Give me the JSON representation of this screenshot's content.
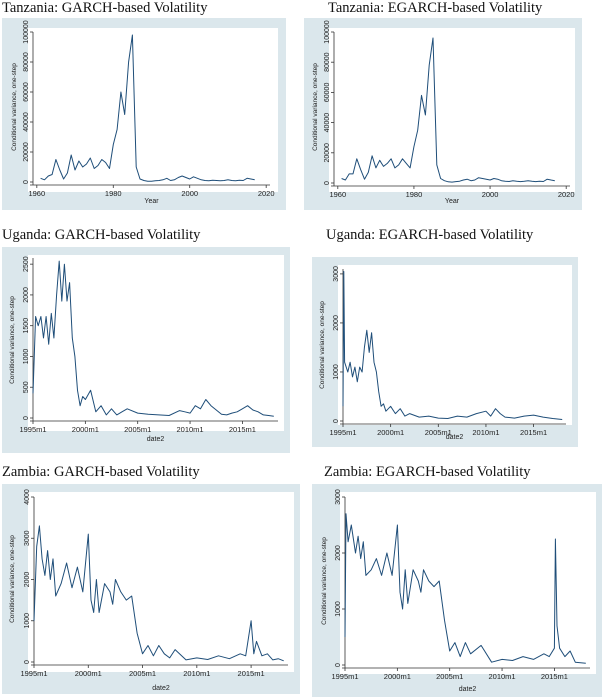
{
  "colors": {
    "line": "#1f4e79",
    "panel_bg": "#dbe7ec",
    "plot_bg": "#ffffff",
    "axis": "#333333"
  },
  "chart_data": [
    {
      "type": "line",
      "title": "Tanzania: GARCH-based Volatility",
      "ylabel": "Conditional variance, one-step",
      "xlabel": "Year",
      "x_axis": "numeric",
      "xlim": [
        1959,
        2021
      ],
      "ylim": [
        0,
        100000
      ],
      "xticks": [
        1960,
        1980,
        2000,
        2020
      ],
      "xtick_labels": [
        "1960",
        "1980",
        "2000",
        "2020"
      ],
      "yticks": [
        0,
        20000,
        40000,
        60000,
        80000,
        100000
      ],
      "ytick_labels": [
        "0",
        "20000",
        "40000",
        "60000",
        "80000",
        "100000"
      ],
      "series": [
        {
          "x": [
            1961,
            1962,
            1963,
            1964,
            1965,
            1966,
            1967,
            1968,
            1969,
            1970,
            1971,
            1972,
            1973,
            1974,
            1975,
            1976,
            1977,
            1978,
            1979,
            1980,
            1981,
            1982,
            1983,
            1984,
            1985,
            1986,
            1987,
            1988,
            1989,
            1990,
            1991,
            1992,
            1993,
            1994,
            1995,
            1996,
            1997,
            1998,
            1999,
            2000,
            2001,
            2002,
            2003,
            2004,
            2005,
            2006,
            2007,
            2008,
            2009,
            2010,
            2011,
            2012,
            2013,
            2014,
            2015,
            2016,
            2017
          ],
          "values": [
            2500,
            1500,
            4000,
            5000,
            15000,
            8000,
            2000,
            6000,
            18000,
            8000,
            14000,
            10000,
            12000,
            16000,
            9000,
            11000,
            15000,
            13000,
            9000,
            25000,
            35000,
            60000,
            45000,
            80000,
            98000,
            10000,
            2000,
            1000,
            500,
            500,
            800,
            1000,
            1500,
            2500,
            1000,
            1500,
            3000,
            4000,
            3000,
            2000,
            3500,
            2500,
            1500,
            1000,
            800,
            1200,
            1000,
            800,
            1000,
            1500,
            1000,
            800,
            1200,
            1000,
            2500,
            2000,
            1500
          ]
        }
      ]
    },
    {
      "type": "line",
      "title": "Tanzania: EGARCH-based Volatility",
      "ylabel": "Conditional variance, one-step",
      "xlabel": "Year",
      "x_axis": "numeric",
      "xlim": [
        1959,
        2021
      ],
      "ylim": [
        0,
        100000
      ],
      "xticks": [
        1960,
        1980,
        2000,
        2020
      ],
      "xtick_labels": [
        "1960",
        "1980",
        "2000",
        "2020"
      ],
      "yticks": [
        0,
        20000,
        40000,
        60000,
        80000,
        100000
      ],
      "ytick_labels": [
        "0",
        "20000",
        "40000",
        "60000",
        "80000",
        "100000"
      ],
      "series": [
        {
          "x": [
            1961,
            1962,
            1963,
            1964,
            1965,
            1966,
            1967,
            1968,
            1969,
            1970,
            1971,
            1972,
            1973,
            1974,
            1975,
            1976,
            1977,
            1978,
            1979,
            1980,
            1981,
            1982,
            1983,
            1984,
            1985,
            1986,
            1987,
            1988,
            1989,
            1990,
            1991,
            1992,
            1993,
            1994,
            1995,
            1996,
            1997,
            1998,
            1999,
            2000,
            2001,
            2002,
            2003,
            2004,
            2005,
            2006,
            2007,
            2008,
            2009,
            2010,
            2011,
            2012,
            2013,
            2014,
            2015,
            2016,
            2017
          ],
          "values": [
            3000,
            2000,
            6000,
            6000,
            16000,
            9000,
            2500,
            7000,
            18000,
            10000,
            15000,
            11000,
            13000,
            16000,
            10000,
            12000,
            16000,
            13000,
            10000,
            24000,
            35000,
            58000,
            45000,
            78000,
            96000,
            12000,
            3000,
            1500,
            800,
            600,
            900,
            1200,
            2000,
            2500,
            1500,
            2000,
            3500,
            3000,
            2500,
            2000,
            3000,
            2500,
            1500,
            1200,
            1000,
            1500,
            1200,
            900,
            1100,
            1500,
            1200,
            900,
            1200,
            1000,
            2500,
            2000,
            1500
          ]
        }
      ]
    },
    {
      "type": "line",
      "title": "Uganda: GARCH-based Volatility",
      "ylabel": "Conditional variance, one-step",
      "xlabel": "date2",
      "x_axis": "monthly",
      "xlim": [
        1995.0,
        2018.4
      ],
      "ylim": [
        0,
        2600
      ],
      "xticks": [
        1995,
        2000,
        2005,
        2010,
        2015
      ],
      "xtick_labels": [
        "1995m1",
        "2000m1",
        "2005m1",
        "2010m1",
        "2015m1"
      ],
      "yticks": [
        0,
        500,
        1000,
        1500,
        2000,
        2500
      ],
      "ytick_labels": [
        "0",
        "500",
        "1000",
        "1500",
        "2000",
        "2500"
      ],
      "series": [
        {
          "x": [
            1995.0,
            1995.25,
            1995.5,
            1995.75,
            1996.0,
            1996.25,
            1996.5,
            1996.75,
            1997.0,
            1997.25,
            1997.5,
            1997.75,
            1998.0,
            1998.25,
            1998.5,
            1998.75,
            1999.0,
            1999.25,
            1999.5,
            1999.75,
            2000.0,
            2000.5,
            2001.0,
            2001.5,
            2002.0,
            2002.5,
            2003.0,
            2003.5,
            2004.0,
            2005.0,
            2006.0,
            2007.0,
            2008.0,
            2009.0,
            2009.5,
            2010.0,
            2010.5,
            2011.0,
            2011.5,
            2012.0,
            2013.0,
            2013.5,
            2014.0,
            2014.5,
            2015.0,
            2015.5,
            2016.0,
            2016.5,
            2017.0,
            2017.5,
            2018.0
          ],
          "values": [
            400,
            1650,
            1500,
            1650,
            1300,
            1650,
            1200,
            1700,
            1300,
            2000,
            2550,
            1900,
            2500,
            1900,
            2200,
            1300,
            1000,
            450,
            200,
            350,
            300,
            450,
            100,
            200,
            50,
            150,
            50,
            100,
            150,
            80,
            60,
            50,
            40,
            120,
            100,
            80,
            200,
            150,
            300,
            200,
            60,
            50,
            80,
            100,
            150,
            200,
            130,
            100,
            50,
            40,
            30
          ]
        }
      ]
    },
    {
      "type": "line",
      "title": "Uganda: EGARCH-based Volatility",
      "ylabel": "Conditional variance, one-step",
      "xlabel": "date2",
      "x_axis": "monthly",
      "xlim": [
        1995.0,
        2018.4
      ],
      "ylim": [
        0,
        3100
      ],
      "xticks": [
        1995,
        2000,
        2005,
        2010,
        2015
      ],
      "xtick_labels": [
        "1995m1",
        "2000m1",
        "2005m1",
        "2010m1",
        "2015m1"
      ],
      "yticks": [
        0,
        1000,
        2000,
        3000
      ],
      "ytick_labels": [
        "0",
        "1000",
        "2000",
        "3000"
      ],
      "series": [
        {
          "x": [
            1995.0,
            1995.08,
            1995.17,
            1995.5,
            1995.75,
            1996.0,
            1996.25,
            1996.5,
            1996.75,
            1997.0,
            1997.25,
            1997.5,
            1997.75,
            1998.0,
            1998.25,
            1998.5,
            1998.75,
            1999.0,
            1999.25,
            1999.5,
            2000.0,
            2000.5,
            2001.0,
            2001.5,
            2002.0,
            2003.0,
            2004.0,
            2005.0,
            2006.0,
            2007.0,
            2008.0,
            2009.0,
            2010.0,
            2010.5,
            2011.0,
            2011.5,
            2012.0,
            2013.0,
            2014.0,
            2015.0,
            2016.0,
            2017.0,
            2018.0
          ],
          "values": [
            300,
            3050,
            1200,
            1000,
            1200,
            900,
            1100,
            800,
            1100,
            1000,
            1500,
            1850,
            1400,
            1800,
            1200,
            1000,
            600,
            300,
            350,
            200,
            300,
            150,
            250,
            100,
            150,
            80,
            100,
            60,
            50,
            100,
            80,
            150,
            200,
            100,
            250,
            150,
            80,
            60,
            100,
            120,
            80,
            50,
            30
          ]
        }
      ]
    },
    {
      "type": "line",
      "title": "Zambia: GARCH-based Volatility",
      "ylabel": "Conditional variance, one-step",
      "xlabel": "date2",
      "x_axis": "monthly",
      "xlim": [
        1995.0,
        2018.4
      ],
      "ylim": [
        0,
        4000
      ],
      "xticks": [
        1995,
        2000,
        2005,
        2010,
        2015
      ],
      "xtick_labels": [
        "1995m1",
        "2000m1",
        "2005m1",
        "2010m1",
        "2015m1"
      ],
      "yticks": [
        0,
        1000,
        2000,
        3000,
        4000
      ],
      "ytick_labels": [
        "0",
        "1000",
        "2000",
        "3000",
        "4000"
      ],
      "series": [
        {
          "x": [
            1995.0,
            1995.25,
            1995.5,
            1995.75,
            1996.0,
            1996.25,
            1996.5,
            1996.75,
            1997.0,
            1997.5,
            1998.0,
            1998.5,
            1999.0,
            1999.5,
            2000.0,
            2000.25,
            2000.5,
            2000.75,
            2001.0,
            2001.5,
            2002.0,
            2002.25,
            2002.5,
            2003.0,
            2003.5,
            2004.0,
            2004.5,
            2005.0,
            2005.5,
            2006.0,
            2006.5,
            2007.0,
            2007.5,
            2008.0,
            2009.0,
            2010.0,
            2011.0,
            2012.0,
            2013.0,
            2014.0,
            2014.5,
            2015.0,
            2015.25,
            2015.5,
            2016.0,
            2016.5,
            2017.0,
            2017.5,
            2018.0
          ],
          "values": [
            1000,
            2800,
            3300,
            2500,
            2100,
            2700,
            2000,
            2500,
            1600,
            1900,
            2400,
            1800,
            2300,
            1700,
            3100,
            1500,
            1200,
            2000,
            1200,
            1900,
            1700,
            1400,
            2000,
            1700,
            1500,
            1600,
            700,
            200,
            400,
            150,
            400,
            200,
            100,
            300,
            50,
            100,
            60,
            150,
            80,
            200,
            150,
            1000,
            200,
            500,
            150,
            200,
            50,
            80,
            30
          ]
        }
      ]
    },
    {
      "type": "line",
      "title": "Zambia: EGARCH-based Volatility",
      "ylabel": "Conditional variance, one-step",
      "xlabel": "date2",
      "x_axis": "monthly",
      "xlim": [
        1995.0,
        2018.4
      ],
      "ylim": [
        0,
        3000
      ],
      "xticks": [
        1995,
        2000,
        2005,
        2010,
        2015
      ],
      "xtick_labels": [
        "1995m1",
        "2000m1",
        "2005m1",
        "2010m1",
        "2015m1"
      ],
      "yticks": [
        0,
        1000,
        2000,
        3000
      ],
      "ytick_labels": [
        "0",
        "1000",
        "2000",
        "3000"
      ],
      "series": [
        {
          "x": [
            1995.0,
            1995.1,
            1995.3,
            1995.6,
            1996.0,
            1996.25,
            1996.5,
            1996.75,
            1997.0,
            1997.5,
            1998.0,
            1998.5,
            1999.0,
            1999.5,
            2000.0,
            2000.25,
            2000.5,
            2000.75,
            2001.0,
            2001.5,
            2002.0,
            2002.25,
            2002.5,
            2003.0,
            2003.5,
            2004.0,
            2004.5,
            2005.0,
            2005.5,
            2006.0,
            2006.5,
            2007.0,
            2008.0,
            2009.0,
            2010.0,
            2011.0,
            2012.0,
            2013.0,
            2014.0,
            2014.5,
            2015.0,
            2015.1,
            2015.25,
            2015.5,
            2016.0,
            2016.5,
            2017.0,
            2018.0
          ],
          "values": [
            500,
            2700,
            2200,
            2500,
            2000,
            2300,
            1900,
            2200,
            1600,
            1700,
            1900,
            1600,
            2000,
            1600,
            2500,
            1300,
            1000,
            1700,
            1100,
            1700,
            1500,
            1300,
            1700,
            1500,
            1400,
            1500,
            800,
            250,
            400,
            150,
            400,
            200,
            350,
            50,
            100,
            80,
            150,
            100,
            200,
            150,
            300,
            2250,
            700,
            300,
            150,
            250,
            50,
            30
          ]
        }
      ]
    }
  ]
}
